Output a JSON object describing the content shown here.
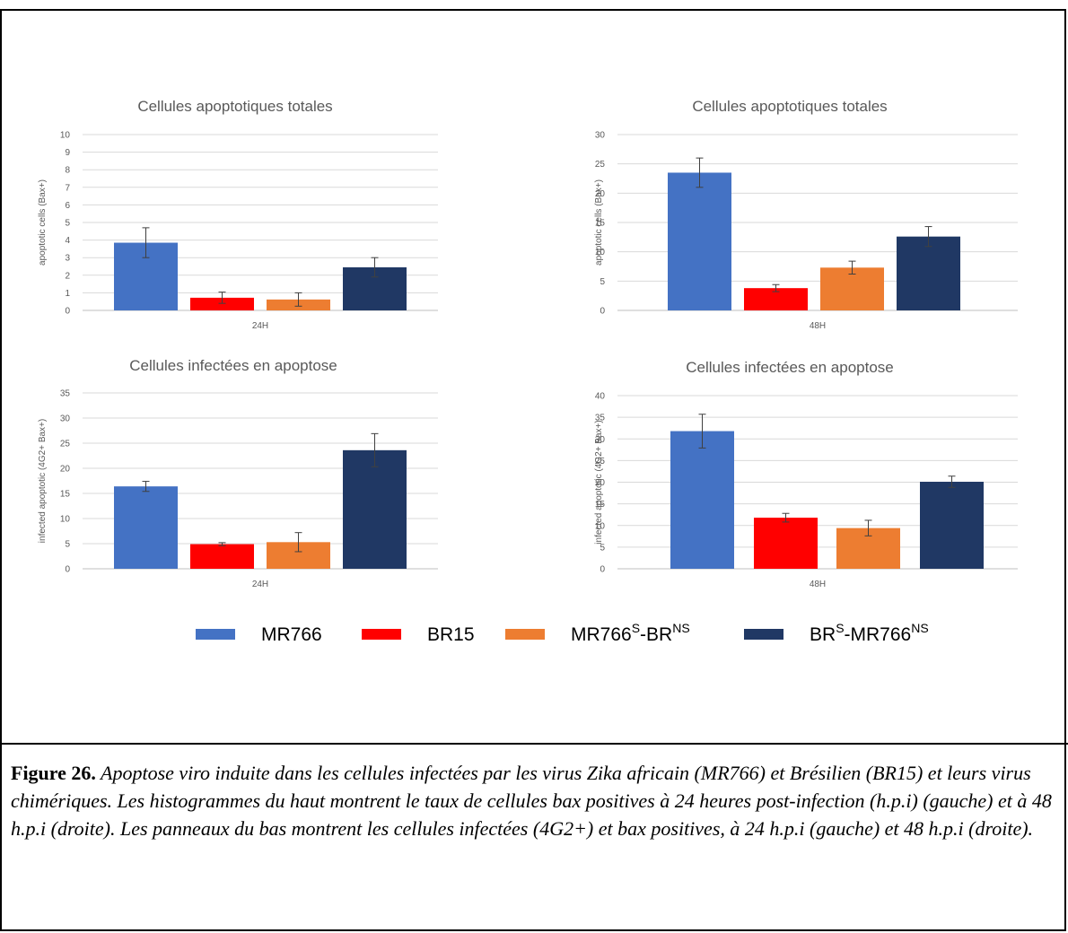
{
  "chart_data": [
    {
      "type": "bar",
      "title": "Cellules apoptotiques totales",
      "ylabel": "apoptotic cells (Bax+)",
      "xlabel": "",
      "categories": [
        "24H"
      ],
      "ylim": [
        0,
        10
      ],
      "yticks": [
        0,
        1,
        2,
        3,
        4,
        5,
        6,
        7,
        8,
        9,
        10
      ],
      "grid": true,
      "series": [
        {
          "name": "MR766",
          "values": [
            3.85
          ],
          "error": [
            0.85
          ]
        },
        {
          "name": "BR15",
          "values": [
            0.72
          ],
          "error": [
            0.32
          ]
        },
        {
          "name": "MR766S-BRNS",
          "values": [
            0.62
          ],
          "error": [
            0.38
          ]
        },
        {
          "name": "BRS-MR766NS",
          "values": [
            2.45
          ],
          "error": [
            0.55
          ]
        }
      ]
    },
    {
      "type": "bar",
      "title": "Cellules apoptotiques totales",
      "ylabel": "apoptotic cells (Bax+)",
      "xlabel": "",
      "categories": [
        "48H"
      ],
      "ylim": [
        0,
        30
      ],
      "yticks": [
        0,
        5,
        10,
        15,
        20,
        25,
        30
      ],
      "grid": true,
      "series": [
        {
          "name": "MR766",
          "values": [
            23.5
          ],
          "error": [
            2.5
          ]
        },
        {
          "name": "BR15",
          "values": [
            3.8
          ],
          "error": [
            0.6
          ]
        },
        {
          "name": "MR766S-BRNS",
          "values": [
            7.3
          ],
          "error": [
            1.1
          ]
        },
        {
          "name": "BRS-MR766NS",
          "values": [
            12.6
          ],
          "error": [
            1.7
          ]
        }
      ]
    },
    {
      "type": "bar",
      "title": "Cellules infectées en apoptose",
      "ylabel": "infected apoptotic (4G2+ Bax+)",
      "xlabel": "",
      "categories": [
        "24H"
      ],
      "ylim": [
        0,
        35
      ],
      "yticks": [
        0,
        5,
        10,
        15,
        20,
        25,
        30,
        35
      ],
      "grid": true,
      "series": [
        {
          "name": "MR766",
          "values": [
            16.4
          ],
          "error": [
            1.0
          ]
        },
        {
          "name": "BR15",
          "values": [
            4.9
          ],
          "error": [
            0.3
          ]
        },
        {
          "name": "MR766S-BRNS",
          "values": [
            5.3
          ],
          "error": [
            1.9
          ]
        },
        {
          "name": "BRS-MR766NS",
          "values": [
            23.6
          ],
          "error": [
            3.3
          ]
        }
      ]
    },
    {
      "type": "bar",
      "title": "Cellules infectées en apoptose",
      "ylabel": "infected apoptotic (4G2+ Bax+)",
      "xlabel": "",
      "categories": [
        "48H"
      ],
      "ylim": [
        0,
        40
      ],
      "yticks": [
        0,
        5,
        10,
        15,
        20,
        25,
        30,
        35,
        40
      ],
      "grid": true,
      "series": [
        {
          "name": "MR766",
          "values": [
            31.8
          ],
          "error": [
            3.9
          ]
        },
        {
          "name": "BR15",
          "values": [
            11.8
          ],
          "error": [
            1.0
          ]
        },
        {
          "name": "MR766S-BRNS",
          "values": [
            9.4
          ],
          "error": [
            1.8
          ]
        },
        {
          "name": "BRS-MR766NS",
          "values": [
            20.1
          ],
          "error": [
            1.3
          ]
        }
      ]
    }
  ],
  "legend": {
    "placement": "bottom",
    "items": [
      {
        "id": "mr766",
        "label": "MR766",
        "sup1": "",
        "mid": "",
        "sup2": "",
        "color": "#4472c4"
      },
      {
        "id": "br15",
        "label": "BR15",
        "sup1": "",
        "mid": "",
        "sup2": "",
        "color": "#ff0000"
      },
      {
        "id": "chimera-mr766s-brns",
        "label": "MR766",
        "sup1": "S",
        "mid": "-BR",
        "sup2": "NS",
        "color": "#ed7d31"
      },
      {
        "id": "chimera-brs-mr766ns",
        "label": "BR",
        "sup1": "S",
        "mid": "-MR766",
        "sup2": "NS",
        "color": "#203864"
      }
    ]
  },
  "caption": {
    "label": "Figure 26.",
    "text": " Apoptose viro induite dans les cellules infectées par les virus Zika africain (MR766) et Brésilien (BR15) et leurs virus chimériques. Les histogrammes du haut montrent le taux de cellules bax positives à 24 heures post-infection (h.p.i) (gauche) et à 48 h.p.i (droite). Les panneaux du bas montrent les cellules infectées (4G2+) et bax positives, à 24 h.p.i (gauche) et 48 h.p.i (droite)."
  },
  "colors": {
    "MR766": "#4472c4",
    "BR15": "#ff0000",
    "MR766S-BRNS": "#ed7d31",
    "BRS-MR766NS": "#203864"
  }
}
